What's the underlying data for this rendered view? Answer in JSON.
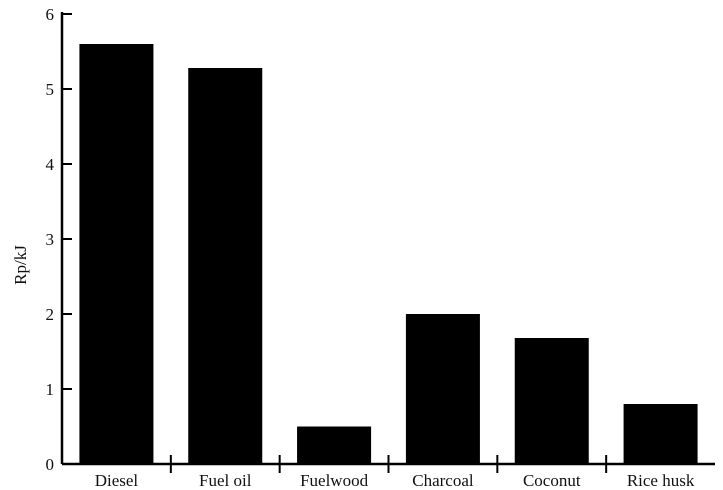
{
  "chart_data": {
    "type": "bar",
    "categories": [
      "Diesel",
      "Fuel oil",
      "Fuelwood",
      "Charcoal",
      "Coconut",
      "Rice husk"
    ],
    "values": [
      5.6,
      5.28,
      0.5,
      2.0,
      1.68,
      0.8
    ],
    "title": "",
    "xlabel": "",
    "ylabel": "Rp/kJ",
    "ylim": [
      0,
      6
    ],
    "yticks": [
      "0",
      "1",
      "2",
      "3",
      "4",
      "5",
      "6"
    ],
    "grid": false,
    "bar_color": "#000000"
  }
}
